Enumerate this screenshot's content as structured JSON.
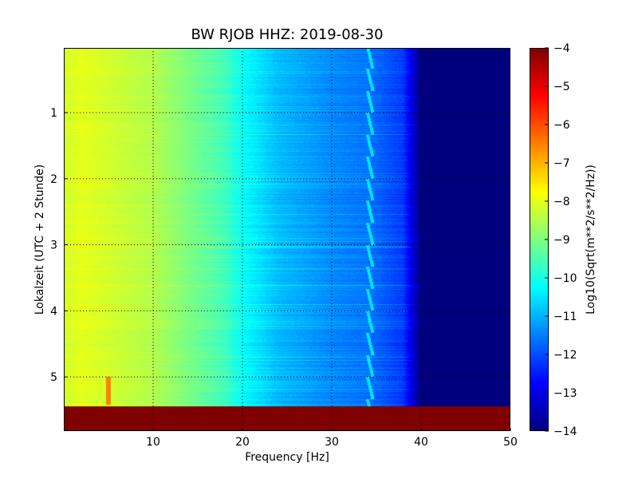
{
  "chart_data": {
    "type": "heatmap",
    "title": "BW RJOB HHZ: 2019-08-30",
    "xlabel": "Frequency [Hz]",
    "ylabel": "Lokalzeit (UTC + 2 Stunde)",
    "xlim": [
      0,
      50
    ],
    "ylim": [
      5.82,
      0.02
    ],
    "y_inverted": true,
    "grid": true,
    "x_ticks": [
      10,
      20,
      30,
      40,
      50
    ],
    "x_tick_labels": [
      "10",
      "20",
      "30",
      "40",
      "50"
    ],
    "y_ticks": [
      1,
      2,
      3,
      4,
      5
    ],
    "y_tick_labels": [
      "1",
      "2",
      "3",
      "4",
      "5"
    ],
    "colormap": "jet",
    "colorbar": {
      "label": "Log10(Sqrt(m**2/s**2/Hz))",
      "vmin": -14,
      "vmax": -4,
      "ticks": [
        -4,
        -5,
        -6,
        -7,
        -8,
        -9,
        -10,
        -11,
        -12,
        -13,
        -14
      ],
      "tick_labels": [
        "−4",
        "−5",
        "−6",
        "−7",
        "−8",
        "−9",
        "−10",
        "−11",
        "−12",
        "−13",
        "−14"
      ]
    },
    "value_profile": {
      "frequency_hz": [
        0,
        2,
        10,
        18,
        20,
        24,
        30,
        34,
        38,
        40,
        50
      ],
      "log10_amplitude": [
        -8.2,
        -8.0,
        -8.5,
        -9.6,
        -10.2,
        -10.9,
        -11.4,
        -11.6,
        -12.2,
        -14,
        -14
      ]
    },
    "no_data_region": {
      "time_from": 5.45,
      "time_to": 5.82,
      "value": -4
    },
    "features": [
      {
        "type": "spike",
        "frequency_hz": 5,
        "time_from": 5.0,
        "time_to": 5.42,
        "log10_amplitude": -6.5
      },
      {
        "type": "narrow-band-line",
        "frequency_hz": 34.3,
        "time_from": 0.02,
        "time_to": 5.45,
        "log10_amplitude": -10.5
      }
    ]
  },
  "colors": {
    "jet_stops": [
      "#00007f",
      "#0000ff",
      "#007fff",
      "#00ffff",
      "#7fff7f",
      "#ffff00",
      "#ff7f00",
      "#ff0000",
      "#7f0000"
    ],
    "grid": "#000000",
    "axes": "#000000"
  }
}
